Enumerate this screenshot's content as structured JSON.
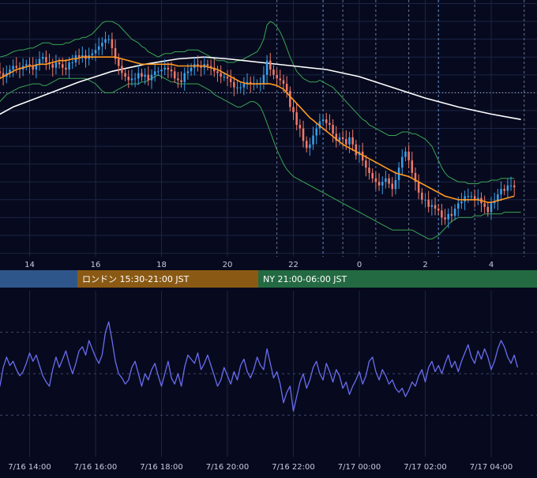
{
  "chart_data": [
    {
      "type": "line",
      "subtype": "candlestick",
      "title": "",
      "x_tick_labels": [
        "14",
        "16",
        "18",
        "20",
        "22",
        "0",
        "2",
        "4"
      ],
      "grid": true,
      "colors": {
        "background": "#070a1e",
        "up_candle": "#3aa0ea",
        "down_candle": "#f07a6a",
        "ma_short": "#ff9922",
        "ma_long": "#ffffff",
        "bollinger": "#3aa455",
        "grid": "#1c2444"
      },
      "series": [
        {
          "name": "price",
          "x_start_hour": 12.9,
          "x_step_hours": 0.1,
          "values": [
            100.0,
            100.2,
            100.1,
            99.9,
            100.1,
            100.3,
            100.5,
            100.4,
            100.3,
            100.5,
            100.6,
            100.5,
            100.3,
            100.6,
            100.9,
            101.0,
            100.7,
            100.6,
            100.4,
            100.7,
            100.6,
            100.4,
            100.3,
            100.7,
            100.7,
            101.1,
            101.0,
            101.1,
            100.9,
            101.1,
            101.2,
            101.4,
            101.6,
            101.8,
            102.0,
            102.0,
            101.5,
            100.9,
            100.5,
            100.1,
            99.9,
            99.7,
            99.8,
            99.8,
            100.1,
            99.9,
            100.0,
            99.7,
            100.0,
            100.2,
            100.2,
            100.3,
            100.4,
            100.3,
            100.2,
            99.8,
            99.7,
            99.6,
            100.1,
            100.2,
            100.4,
            100.6,
            100.5,
            100.4,
            100.6,
            100.5,
            100.4,
            100.2,
            100.1,
            99.9,
            99.9,
            99.8,
            99.6,
            99.3,
            99.3,
            99.3,
            99.5,
            99.6,
            99.5,
            99.5,
            99.5,
            99.5,
            100.0,
            100.8,
            100.3,
            100.0,
            99.8,
            99.7,
            99.5,
            99.1,
            98.2,
            97.9,
            97.2,
            97.0,
            96.3,
            95.9,
            96.1,
            96.6,
            97.0,
            97.4,
            97.5,
            97.3,
            97.2,
            96.7,
            96.3,
            96.5,
            96.4,
            96.1,
            96.5,
            96.1,
            95.5,
            95.7,
            95.2,
            94.8,
            94.5,
            94.2,
            94.0,
            93.8,
            94.0,
            94.2,
            93.9,
            93.6,
            94.1,
            94.8,
            95.4,
            95.7,
            95.2,
            94.5,
            94.0,
            93.4,
            93.0,
            93.0,
            92.6,
            92.7,
            92.5,
            92.4,
            92.0,
            91.9,
            92.2,
            92.1,
            92.5,
            92.8,
            92.9,
            93.2,
            93.2,
            93.2,
            93.0,
            93.1,
            92.8,
            92.6,
            92.3,
            92.8,
            92.9,
            93.3,
            93.6,
            93.5,
            93.8,
            93.8,
            93.7
          ]
        },
        {
          "name": "ma_short",
          "values": [
            99.4,
            99.6,
            99.8,
            99.9,
            100.0,
            100.1,
            100.2,
            100.3,
            100.35,
            100.4,
            100.45,
            100.5,
            100.5,
            100.55,
            100.6,
            100.6,
            100.6,
            100.65,
            100.7,
            100.75,
            100.8,
            100.8,
            100.8,
            100.85,
            100.9,
            100.9,
            100.95,
            101.0,
            101.0,
            101.0,
            101.0,
            101.0,
            101.0,
            101.0,
            101.0,
            101.0,
            101.0,
            101.0,
            100.95,
            100.9,
            100.85,
            100.8,
            100.75,
            100.7,
            100.65,
            100.6,
            100.6,
            100.6,
            100.6,
            100.6,
            100.6,
            100.6,
            100.6,
            100.6,
            100.6,
            100.55,
            100.5,
            100.5,
            100.5,
            100.5,
            100.5,
            100.5,
            100.5,
            100.5,
            100.5,
            100.45,
            100.4,
            100.35,
            100.3,
            100.2,
            100.1,
            100.0,
            99.9,
            99.8,
            99.7,
            99.6,
            99.55,
            99.5,
            99.5,
            99.5,
            99.5,
            99.5,
            99.5,
            99.5,
            99.5,
            99.45,
            99.4,
            99.3,
            99.2,
            99.0,
            98.8,
            98.6,
            98.4,
            98.2,
            98.0,
            97.8,
            97.6,
            97.45,
            97.3,
            97.15,
            97.0,
            96.85,
            96.7,
            96.55,
            96.4,
            96.25,
            96.1,
            96.0,
            95.9,
            95.8,
            95.7,
            95.6,
            95.5,
            95.4,
            95.3,
            95.2,
            95.1,
            95.0,
            94.9,
            94.8,
            94.7,
            94.6,
            94.5,
            94.45,
            94.4,
            94.35,
            94.3,
            94.2,
            94.1,
            94.0,
            93.9,
            93.8,
            93.7,
            93.6,
            93.5,
            93.4,
            93.3,
            93.2,
            93.15,
            93.1,
            93.05,
            93.0,
            93.0,
            93.0,
            93.0,
            93.0,
            93.0,
            93.0,
            92.95,
            92.9,
            92.85,
            92.85,
            92.9,
            92.95,
            93.0,
            93.05,
            93.1,
            93.15,
            93.2
          ]
        },
        {
          "name": "bollinger_upper",
          "values": [
            100.8,
            100.9,
            101.0,
            101.05,
            101.1,
            101.2,
            101.3,
            101.35,
            101.4,
            101.4,
            101.45,
            101.5,
            101.5,
            101.6,
            101.7,
            101.8,
            101.8,
            101.8,
            101.7,
            101.7,
            101.7,
            101.7,
            101.8,
            101.8,
            101.9,
            102.0,
            102.0,
            102.1,
            102.1,
            102.2,
            102.3,
            102.5,
            102.7,
            102.9,
            103.0,
            103.0,
            103.0,
            102.9,
            102.8,
            102.6,
            102.4,
            102.2,
            102.0,
            101.9,
            101.8,
            101.6,
            101.5,
            101.3,
            101.2,
            101.1,
            101.0,
            101.1,
            101.2,
            101.2,
            101.2,
            101.3,
            101.3,
            101.3,
            101.3,
            101.4,
            101.4,
            101.4,
            101.4,
            101.3,
            101.2,
            101.1,
            101.0,
            100.9,
            100.8,
            100.8,
            100.8,
            100.7,
            100.7,
            100.7,
            100.8,
            100.8,
            100.9,
            101.0,
            101.1,
            101.2,
            101.3,
            101.6,
            102.0,
            102.8,
            103.0,
            102.9,
            102.7,
            102.4,
            102.0,
            101.5,
            101.0,
            100.6,
            100.2,
            100.0,
            99.8,
            99.7,
            99.6,
            99.6,
            99.6,
            99.7,
            99.6,
            99.5,
            99.4,
            99.3,
            99.1,
            98.9,
            98.7,
            98.5,
            98.3,
            98.1,
            97.9,
            97.7,
            97.5,
            97.4,
            97.2,
            97.1,
            97.0,
            96.9,
            96.8,
            96.7,
            96.6,
            96.6,
            96.6,
            96.7,
            96.8,
            96.8,
            96.8,
            96.7,
            96.7,
            96.6,
            96.5,
            96.4,
            96.2,
            96.0,
            95.6,
            95.2,
            94.8,
            94.5,
            94.3,
            94.2,
            94.1,
            94.0,
            94.0,
            94.0,
            93.9,
            93.9,
            93.9,
            93.9,
            94.0,
            94.0,
            94.0,
            94.1,
            94.1,
            94.1,
            94.2,
            94.2,
            94.2,
            94.2,
            94.2
          ]
        },
        {
          "name": "bollinger_lower",
          "values": [
            98.0,
            98.3,
            98.5,
            98.7,
            98.9,
            99.0,
            99.1,
            99.2,
            99.3,
            99.35,
            99.4,
            99.45,
            99.5,
            99.5,
            99.5,
            99.4,
            99.4,
            99.5,
            99.6,
            99.7,
            99.8,
            99.8,
            99.8,
            99.8,
            99.8,
            99.8,
            99.8,
            99.8,
            99.8,
            99.7,
            99.6,
            99.5,
            99.3,
            99.1,
            99.0,
            99.0,
            99.0,
            99.1,
            99.2,
            99.3,
            99.4,
            99.5,
            99.5,
            99.5,
            99.5,
            99.6,
            99.6,
            99.7,
            99.8,
            99.9,
            100.0,
            99.9,
            99.8,
            99.7,
            99.6,
            99.6,
            99.5,
            99.5,
            99.5,
            99.5,
            99.5,
            99.5,
            99.5,
            99.4,
            99.3,
            99.2,
            99.1,
            98.9,
            98.8,
            98.7,
            98.6,
            98.5,
            98.4,
            98.3,
            98.2,
            98.2,
            98.3,
            98.4,
            98.5,
            98.5,
            98.4,
            98.2,
            97.8,
            97.3,
            96.8,
            96.3,
            95.8,
            95.4,
            95.0,
            94.7,
            94.5,
            94.3,
            94.2,
            94.1,
            94.0,
            93.9,
            93.8,
            93.7,
            93.6,
            93.5,
            93.4,
            93.3,
            93.2,
            93.1,
            93.0,
            92.9,
            92.8,
            92.7,
            92.6,
            92.5,
            92.4,
            92.3,
            92.2,
            92.1,
            92.0,
            91.9,
            91.8,
            91.7,
            91.6,
            91.5,
            91.4,
            91.3,
            91.3,
            91.3,
            91.3,
            91.3,
            91.3,
            91.3,
            91.2,
            91.1,
            91.0,
            90.9,
            90.8,
            90.8,
            90.9,
            91.0,
            91.2,
            91.4,
            91.6,
            91.8,
            91.9,
            92.0,
            92.0,
            92.0,
            92.0,
            92.0,
            92.1,
            92.1,
            92.1,
            92.2,
            92.2,
            92.2,
            92.2,
            92.2,
            92.2,
            92.3,
            92.3,
            92.3,
            92.3,
            92.3,
            92.3
          ]
        }
      ],
      "ma_long": {
        "name": "ma_long",
        "x_hours": [
          12.9,
          13.5,
          14.5,
          15.5,
          16.5,
          17.5,
          18.5,
          19.3,
          20.0,
          20.5,
          21.0,
          22.0,
          23.0,
          24.0,
          25.0,
          26.0,
          27.0,
          28.0,
          28.9
        ],
        "values": [
          97.6,
          98.2,
          98.9,
          99.6,
          100.2,
          100.6,
          100.9,
          101.0,
          100.9,
          100.8,
          100.7,
          100.5,
          100.3,
          99.9,
          99.3,
          98.7,
          98.2,
          97.8,
          97.5
        ]
      },
      "ylim": [
        89.8,
        104.2
      ],
      "xlim_hours": [
        12.9,
        29.1
      ],
      "dotted_reference_level": 99.0
    },
    {
      "type": "bar",
      "subtype": "session-band",
      "sessions": [
        {
          "label": "",
          "color": "#2f568a"
        },
        {
          "label": "ロンドン 15:30-21:00 JST",
          "color": "#8a5a14"
        },
        {
          "label": "NY 21:00-06:00 JST",
          "color": "#236a42"
        }
      ]
    },
    {
      "type": "line",
      "title": "",
      "color": "#6a6cf0",
      "grid": true,
      "x_tick_labels": [
        "7/16 14:00",
        "7/16 16:00",
        "7/16 18:00",
        "7/16 20:00",
        "7/16 22:00",
        "7/17 00:00",
        "7/17 02:00",
        "7/17 04:00"
      ],
      "x_start_hour": 12.9,
      "x_step_hours": 0.1,
      "values": [
        47,
        49,
        44,
        53,
        58,
        54,
        56,
        52,
        49,
        51,
        55,
        60,
        56,
        59,
        54,
        49,
        46,
        44,
        52,
        58,
        53,
        57,
        61,
        55,
        50,
        55,
        61,
        63,
        59,
        66,
        62,
        58,
        55,
        59,
        70,
        75,
        66,
        56,
        50,
        48,
        45,
        47,
        53,
        56,
        50,
        44,
        50,
        47,
        52,
        55,
        49,
        44,
        50,
        56,
        48,
        45,
        50,
        44,
        53,
        59,
        57,
        55,
        60,
        52,
        55,
        59,
        54,
        49,
        44,
        47,
        53,
        49,
        45,
        51,
        47,
        54,
        57,
        51,
        48,
        52,
        58,
        54,
        52,
        62,
        55,
        48,
        51,
        45,
        36,
        41,
        44,
        32,
        39,
        46,
        50,
        43,
        47,
        53,
        56,
        50,
        47,
        55,
        51,
        46,
        52,
        49,
        43,
        46,
        40,
        44,
        47,
        51,
        45,
        49,
        56,
        58,
        51,
        47,
        52,
        49,
        45,
        47,
        43,
        41,
        43,
        39,
        42,
        46,
        44,
        49,
        52,
        46,
        53,
        56,
        51,
        54,
        50,
        55,
        59,
        53,
        56,
        51,
        56,
        60,
        64,
        58,
        55,
        61,
        57,
        62,
        58,
        52,
        56,
        62,
        66,
        63,
        58,
        55,
        59,
        53
      ],
      "ylim": [
        10,
        90
      ],
      "dotted_levels": [
        70,
        50,
        30
      ]
    }
  ]
}
